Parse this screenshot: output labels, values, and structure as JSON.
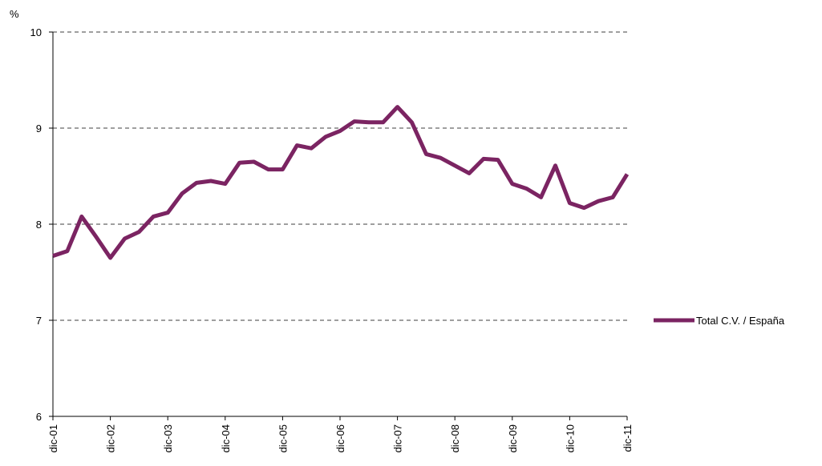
{
  "chart_data": {
    "type": "line",
    "y_label": "%",
    "categories": [
      "dic-01",
      null,
      null,
      null,
      "dic-02",
      null,
      null,
      null,
      "dic-03",
      null,
      null,
      null,
      "dic-04",
      null,
      null,
      null,
      "dic-05",
      null,
      null,
      null,
      "dic-06",
      null,
      null,
      null,
      "dic-07",
      null,
      null,
      null,
      "dic-08",
      null,
      null,
      null,
      "dic-09",
      null,
      null,
      null,
      "dic-10",
      null,
      null,
      null,
      "dic-11"
    ],
    "series": [
      {
        "name": "Total C.V. / España",
        "color": "#7b2462",
        "values": [
          7.67,
          7.72,
          8.08,
          7.87,
          7.65,
          7.85,
          7.92,
          8.08,
          8.12,
          8.32,
          8.43,
          8.45,
          8.42,
          8.64,
          8.65,
          8.57,
          8.57,
          8.82,
          8.79,
          8.91,
          8.97,
          9.07,
          9.06,
          9.06,
          9.22,
          9.06,
          8.73,
          8.69,
          8.61,
          8.53,
          8.68,
          8.67,
          8.42,
          8.37,
          8.28,
          8.61,
          8.22,
          8.17,
          8.24,
          8.28,
          8.52
        ]
      }
    ],
    "ylim": [
      6,
      10
    ],
    "yticks": [
      6,
      7,
      8,
      9,
      10
    ],
    "grid": true,
    "legend": "right"
  }
}
